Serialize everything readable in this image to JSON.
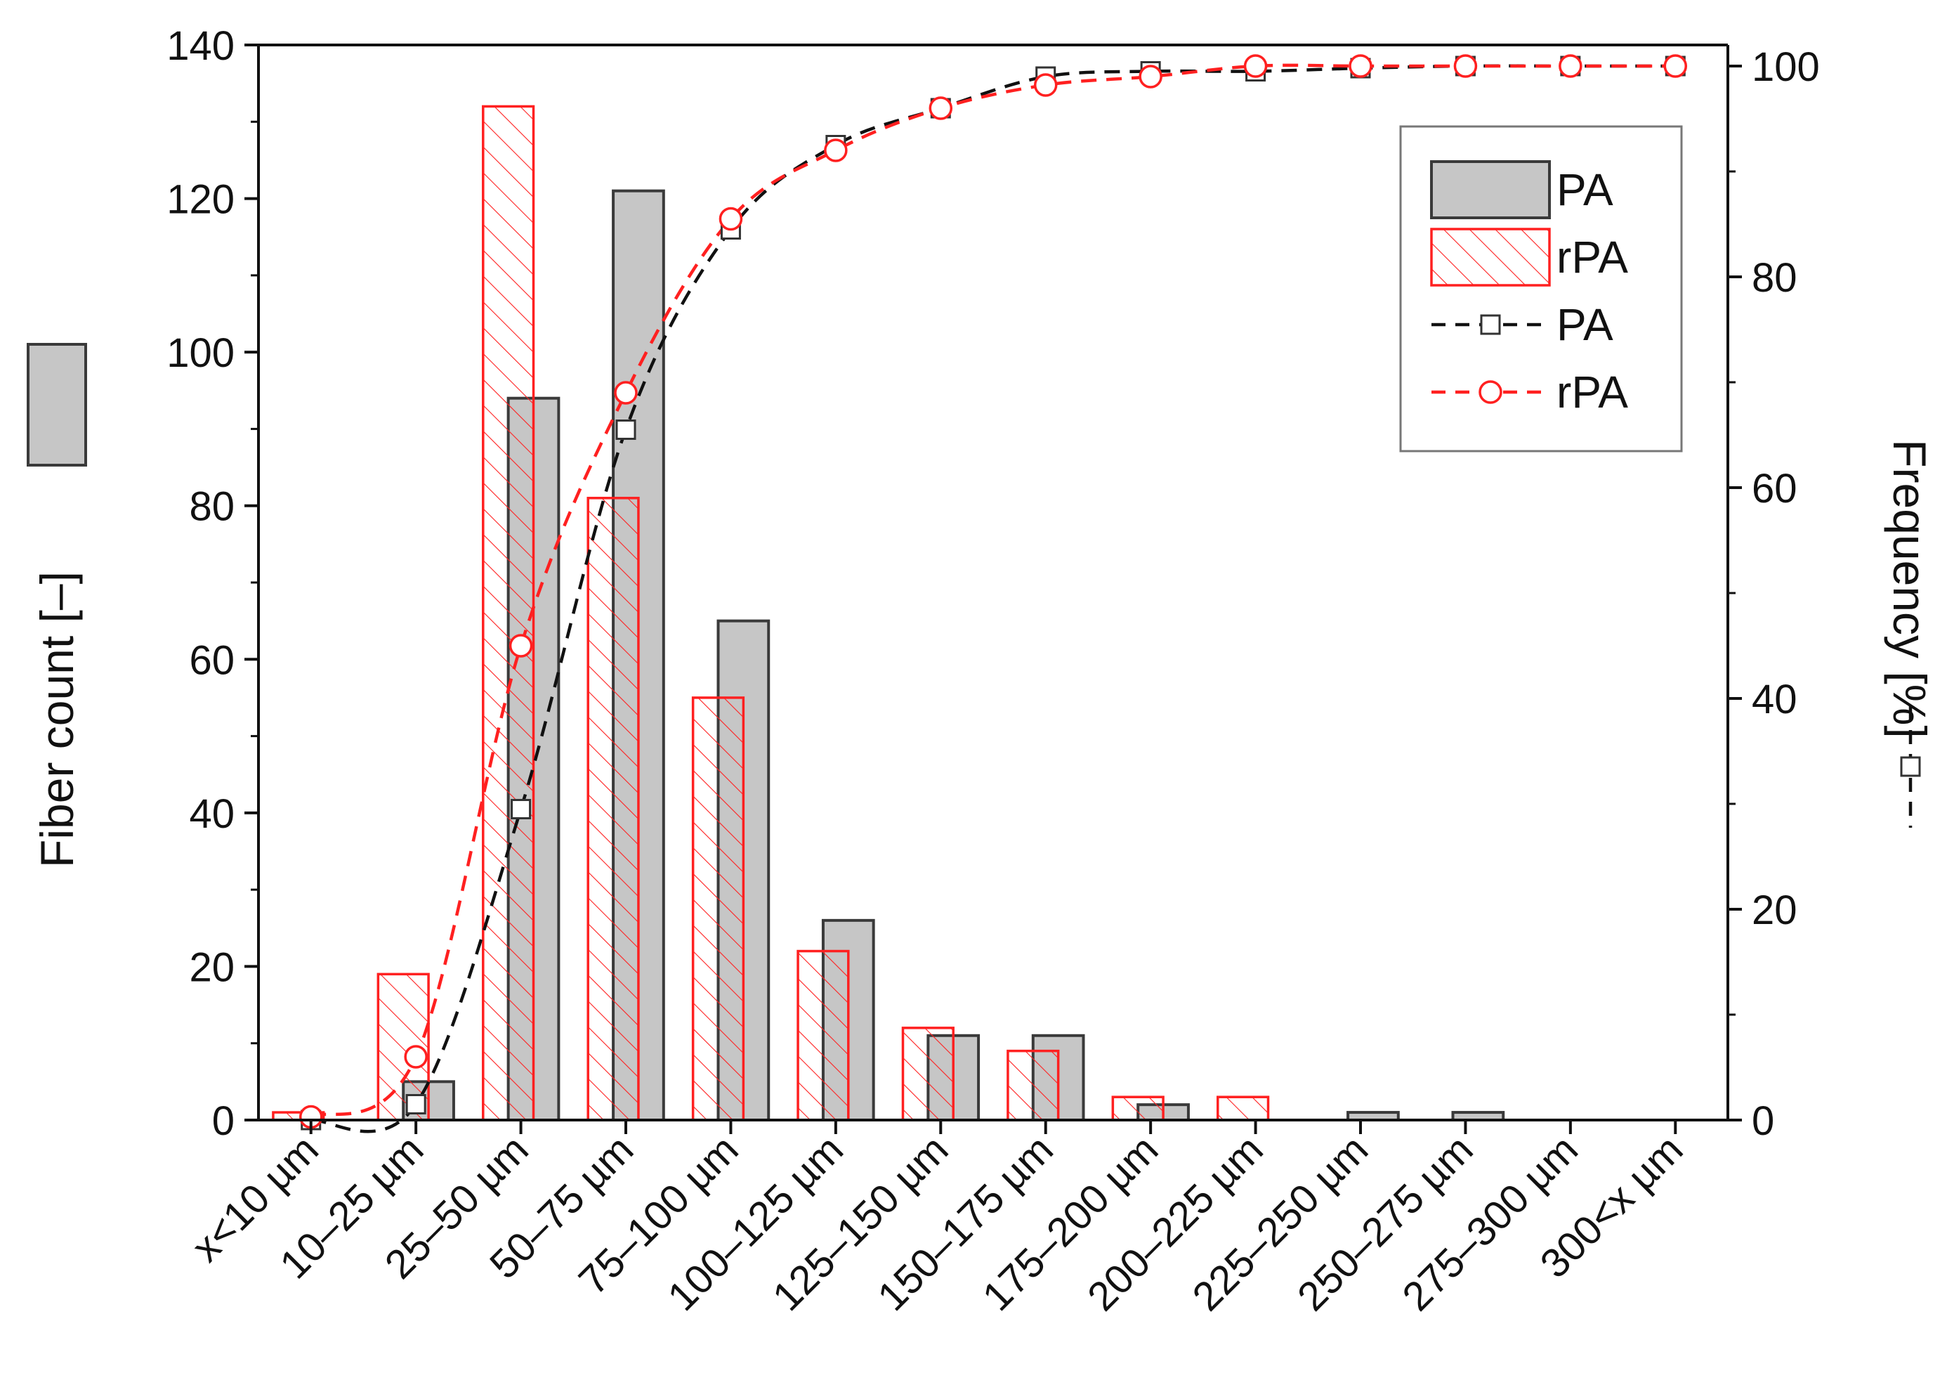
{
  "chart_data": {
    "type": "bar",
    "categories": [
      "x<10 µm",
      "10–25 µm",
      "25–50 µm",
      "50–75 µm",
      "75–100 µm",
      "100–125 µm",
      "125–150 µm",
      "150–175 µm",
      "175–200 µm",
      "200–225 µm",
      "225–250 µm",
      "250–275 µm",
      "275–300 µm",
      "300<x µm"
    ],
    "y_left": {
      "label": "Fiber count [–]",
      "lim": [
        0,
        140
      ],
      "ticks": [
        0,
        20,
        40,
        60,
        80,
        100,
        120,
        140
      ]
    },
    "y_right": {
      "label": "Frequency [%]",
      "lim": [
        0,
        102
      ],
      "ticks": [
        0,
        20,
        40,
        60,
        80,
        100
      ]
    },
    "series": [
      {
        "name": "PA",
        "kind": "bar",
        "axis": "left",
        "style": "solid-gray",
        "values": [
          0,
          5,
          94,
          121,
          65,
          26,
          11,
          11,
          2,
          0,
          1,
          1,
          0,
          0
        ]
      },
      {
        "name": "rPA",
        "kind": "bar",
        "axis": "left",
        "style": "red-hatched",
        "values": [
          1,
          19,
          132,
          81,
          55,
          22,
          12,
          9,
          3,
          3,
          0,
          0,
          0,
          0
        ]
      },
      {
        "name": "PA",
        "kind": "line",
        "axis": "right",
        "style": "black-dashed-square",
        "values": [
          0,
          1.5,
          29.5,
          65.5,
          84.5,
          92.5,
          96,
          99,
          99.5,
          99.5,
          99.8,
          100,
          100,
          100
        ]
      },
      {
        "name": "rPA",
        "kind": "line",
        "axis": "right",
        "style": "red-dashed-circle",
        "values": [
          0.3,
          6,
          45,
          69,
          85.5,
          92,
          96,
          98.2,
          99,
          100,
          100,
          100,
          100,
          100
        ]
      }
    ],
    "legend": {
      "position": "top-right",
      "entries": [
        "PA",
        "rPA",
        "PA",
        "rPA"
      ]
    },
    "colors": {
      "bar_gray": "#c6c6c6",
      "bar_gray_edge": "#3a3a3a",
      "red": "#ff2020",
      "black": "#111111"
    },
    "grid": false
  }
}
